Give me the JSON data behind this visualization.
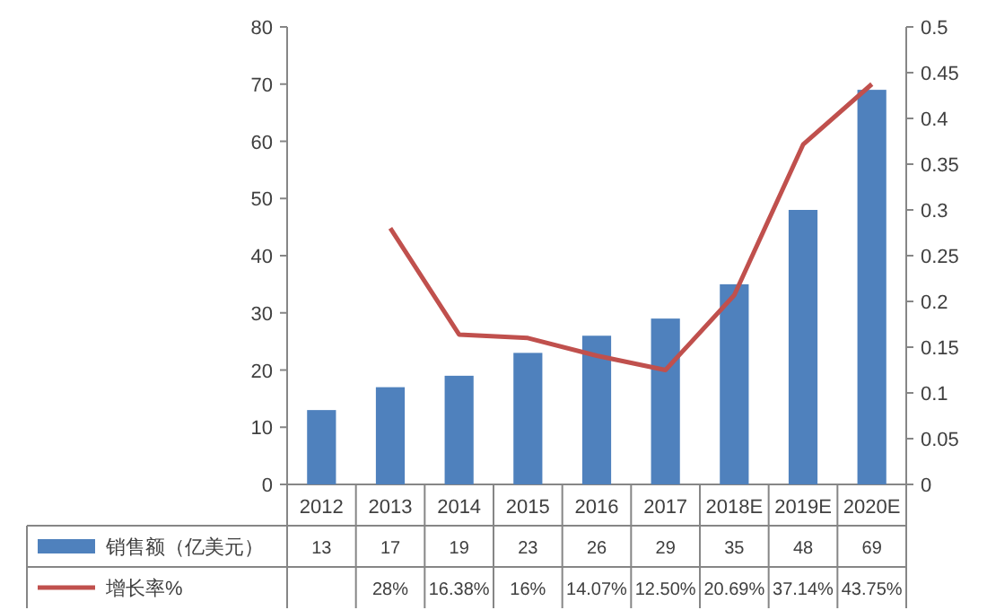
{
  "chart_data": {
    "type": "bar",
    "categories": [
      "2012",
      "2013",
      "2014",
      "2015",
      "2016",
      "2017",
      "2018E",
      "2019E",
      "2020E"
    ],
    "series": [
      {
        "name": "销售额（亿美元）",
        "color": "#4f81bd",
        "values": [
          13,
          17,
          19,
          23,
          26,
          29,
          35,
          48,
          69
        ],
        "value_labels": [
          "13",
          "17",
          "19",
          "23",
          "26",
          "29",
          "35",
          "48",
          "69"
        ]
      },
      {
        "name": "增长率%",
        "type": "line",
        "axis": "y2",
        "color": "#c0504d",
        "values": [
          null,
          0.28,
          0.1638,
          0.16,
          0.1407,
          0.125,
          0.2069,
          0.3714,
          0.4375
        ],
        "value_labels": [
          null,
          "28%",
          "16.38%",
          "16%",
          "14.07%",
          "12.50%",
          "20.69%",
          "37.14%",
          "43.75%"
        ]
      }
    ],
    "ylim": [
      0,
      80
    ],
    "yticks": [
      0,
      10,
      20,
      30,
      40,
      50,
      60,
      70,
      80
    ],
    "y2lim": [
      0,
      0.5
    ],
    "y2ticks": [
      0,
      0.05,
      0.1,
      0.15,
      0.2,
      0.25,
      0.3,
      0.35,
      0.4,
      0.45,
      0.5
    ],
    "legend": "bottom",
    "grid": false,
    "marker": "none",
    "line_style": "solid"
  }
}
